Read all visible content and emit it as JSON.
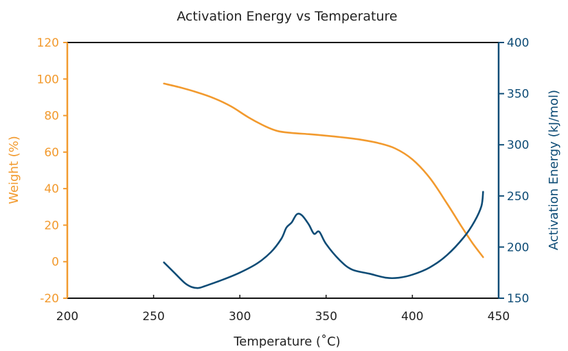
{
  "chart_data": {
    "type": "line",
    "title": "Activation Energy vs Temperature",
    "xlabel": "Temperature (˚C)",
    "ylabel_left": "Weight (%)",
    "ylabel_right": "Activation Energy (kJ/mol)",
    "xlim": [
      200,
      450
    ],
    "ylim_left": [
      -20,
      120
    ],
    "ylim_right": [
      150,
      400
    ],
    "x_ticks": [
      200,
      250,
      300,
      350,
      400,
      450
    ],
    "y_left_ticks": [
      -20,
      0,
      20,
      40,
      60,
      80,
      100,
      120
    ],
    "y_right_ticks": [
      150,
      200,
      250,
      300,
      350,
      400
    ],
    "grid": false,
    "colors": {
      "left": "#F29A2E",
      "right": "#0E4C76",
      "frame": "#111111",
      "text": "#222222"
    },
    "series": [
      {
        "axis": "left",
        "color": "#F29A2E",
        "points": [
          [
            256,
            97.5
          ],
          [
            265,
            95.5
          ],
          [
            275,
            92.8
          ],
          [
            285,
            89.5
          ],
          [
            295,
            85.0
          ],
          [
            305,
            79.0
          ],
          [
            315,
            74.0
          ],
          [
            322,
            71.5
          ],
          [
            330,
            70.5
          ],
          [
            340,
            69.8
          ],
          [
            350,
            69.0
          ],
          [
            360,
            68.0
          ],
          [
            370,
            66.8
          ],
          [
            380,
            65.0
          ],
          [
            390,
            62.0
          ],
          [
            400,
            56.0
          ],
          [
            410,
            46.0
          ],
          [
            420,
            32.0
          ],
          [
            428,
            20.0
          ],
          [
            435,
            10.0
          ],
          [
            441,
            2.5
          ]
        ]
      },
      {
        "axis": "right",
        "color": "#0E4C76",
        "points": [
          [
            256,
            185
          ],
          [
            262,
            175
          ],
          [
            268,
            165
          ],
          [
            272,
            161
          ],
          [
            276,
            160
          ],
          [
            280,
            162
          ],
          [
            290,
            168
          ],
          [
            300,
            175
          ],
          [
            310,
            184
          ],
          [
            318,
            195
          ],
          [
            324,
            208
          ],
          [
            327,
            219
          ],
          [
            330,
            224
          ],
          [
            333,
            232
          ],
          [
            336,
            231
          ],
          [
            340,
            222
          ],
          [
            343,
            213
          ],
          [
            346,
            215
          ],
          [
            350,
            203
          ],
          [
            358,
            187
          ],
          [
            365,
            178
          ],
          [
            375,
            174
          ],
          [
            385,
            170
          ],
          [
            392,
            170
          ],
          [
            400,
            173
          ],
          [
            410,
            180
          ],
          [
            420,
            192
          ],
          [
            430,
            210
          ],
          [
            436,
            225
          ],
          [
            440,
            240
          ],
          [
            441,
            254
          ]
        ]
      }
    ]
  }
}
